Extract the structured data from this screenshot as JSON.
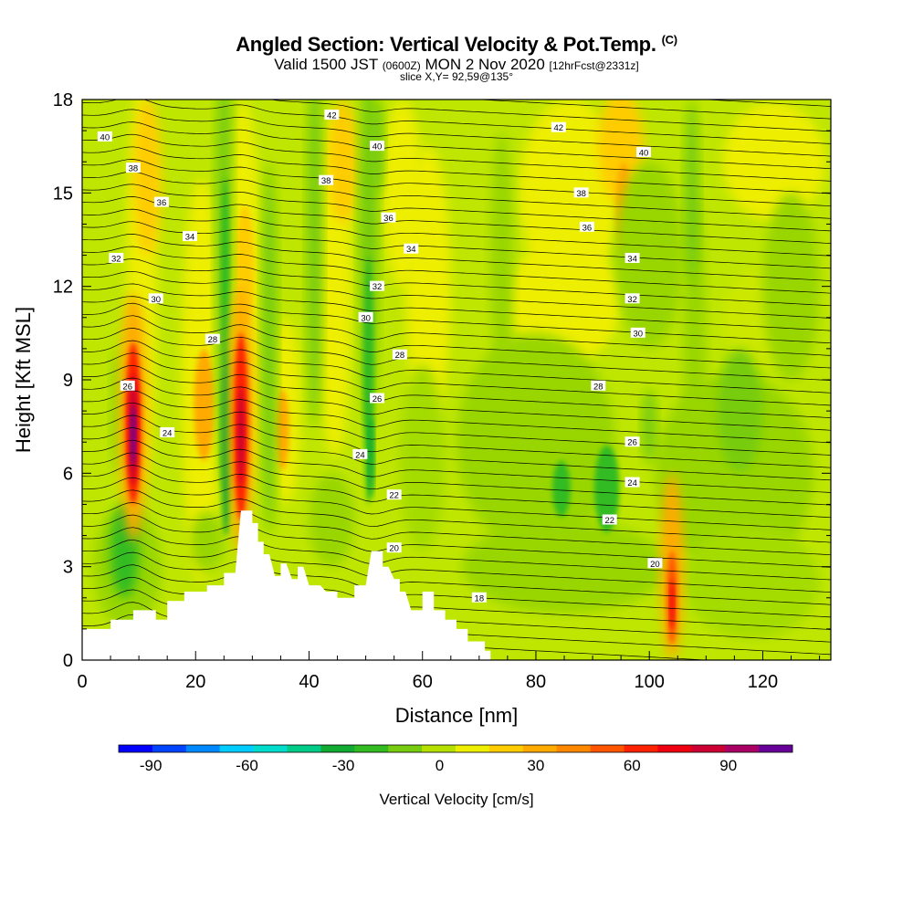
{
  "header": {
    "title": "Angled Section: Vertical Velocity & Pot.Temp.",
    "title_mark": "(C)",
    "subtitle_part1": "Valid 1500 JST",
    "subtitle_small1": "(0600Z)",
    "subtitle_part2": "MON 2 Nov 2020",
    "subtitle_small2": "[12hrFcst@2331z]",
    "slice": "slice X,Y= 92,59@135°"
  },
  "chart_data": {
    "type": "heatmap",
    "xlabel": "Distance [nm]",
    "ylabel": "Height [Kft MSL]",
    "xlim": [
      0,
      132
    ],
    "ylim": [
      0,
      18
    ],
    "x_ticks": [
      0,
      20,
      40,
      60,
      80,
      100,
      120
    ],
    "y_ticks": [
      0,
      3,
      6,
      9,
      12,
      15,
      18
    ],
    "colorbar": {
      "label": "Vertical Velocity [cm/s]",
      "range": [
        -100,
        110
      ],
      "tick_values": [
        -90,
        -60,
        -30,
        0,
        30,
        60,
        90
      ],
      "colors": [
        "#0000ff",
        "#0044ff",
        "#0088ff",
        "#00ccff",
        "#00ddcc",
        "#00cc88",
        "#11aa33",
        "#33bb22",
        "#77cc11",
        "#b5e000",
        "#eeee00",
        "#ffcc00",
        "#ffaa00",
        "#ff8800",
        "#ff5500",
        "#ff2200",
        "#ee0011",
        "#cc0033",
        "#aa0066",
        "#660099"
      ]
    },
    "theta_contours": [
      {
        "value": 18,
        "label_x": 70,
        "label_y": 2.0
      },
      {
        "value": 20,
        "label_x": 55,
        "label_y": 3.6,
        "label_x2": 101,
        "label_y2": 3.1
      },
      {
        "value": 22,
        "label_x": 55,
        "label_y": 5.3,
        "label_x2": 93,
        "label_y2": 4.5
      },
      {
        "value": 24,
        "label_x": 15,
        "label_y": 7.3,
        "label_x2": 49,
        "label_y2": 6.6,
        "label_x3": 97,
        "label_y3": 5.7
      },
      {
        "value": 26,
        "label_x": 8,
        "label_y": 8.8,
        "label_x2": 52,
        "label_y2": 8.4,
        "label_x3": 97,
        "label_y3": 7.0
      },
      {
        "value": 28,
        "label_x": 23,
        "label_y": 10.3,
        "label_x2": 56,
        "label_y2": 9.8,
        "label_x3": 91,
        "label_y3": 8.8
      },
      {
        "value": 30,
        "label_x": 13,
        "label_y": 11.6,
        "label_x2": 50,
        "label_y2": 11.0,
        "label_x3": 98,
        "label_y3": 10.5
      },
      {
        "value": 32,
        "label_x": 6,
        "label_y": 12.9,
        "label_x2": 52,
        "label_y2": 12.0,
        "label_x3": 97,
        "label_y3": 11.6
      },
      {
        "value": 34,
        "label_x": 19,
        "label_y": 13.6,
        "label_x2": 58,
        "label_y2": 13.2,
        "label_x3": 97,
        "label_y3": 12.9
      },
      {
        "value": 36,
        "label_x": 14,
        "label_y": 14.7,
        "label_x2": 54,
        "label_y2": 14.2,
        "label_x3": 89,
        "label_y3": 13.9
      },
      {
        "value": 38,
        "label_x": 9,
        "label_y": 15.8,
        "label_x2": 43,
        "label_y2": 15.4,
        "label_x3": 88,
        "label_y3": 15.0
      },
      {
        "value": 40,
        "label_x": 4,
        "label_y": 16.8,
        "label_x2": 52,
        "label_y2": 16.5,
        "label_x3": 99,
        "label_y3": 16.3
      },
      {
        "value": 42,
        "label_x": 44,
        "label_y": 17.5,
        "label_x2": 84,
        "label_y2": 17.1
      }
    ],
    "terrain": [
      [
        0,
        1.0
      ],
      [
        5,
        1.0
      ],
      [
        5,
        1.3
      ],
      [
        9,
        1.3
      ],
      [
        9,
        1.6
      ],
      [
        13,
        1.6
      ],
      [
        13,
        1.3
      ],
      [
        15,
        1.3
      ],
      [
        15,
        1.9
      ],
      [
        18,
        1.9
      ],
      [
        18,
        2.2
      ],
      [
        22,
        2.2
      ],
      [
        22,
        2.4
      ],
      [
        25,
        2.4
      ],
      [
        25,
        2.8
      ],
      [
        27,
        2.8
      ],
      [
        28,
        4.8
      ],
      [
        30,
        4.8
      ],
      [
        30,
        4.4
      ],
      [
        31,
        4.4
      ],
      [
        31,
        3.8
      ],
      [
        32,
        3.8
      ],
      [
        32,
        3.4
      ],
      [
        33,
        3.4
      ],
      [
        34,
        2.7
      ],
      [
        35,
        2.7
      ],
      [
        35,
        3.1
      ],
      [
        36,
        3.1
      ],
      [
        37,
        2.6
      ],
      [
        38,
        2.6
      ],
      [
        38,
        3.0
      ],
      [
        39,
        3.0
      ],
      [
        40,
        2.4
      ],
      [
        42,
        2.4
      ],
      [
        43,
        2.2
      ],
      [
        45,
        2.2
      ],
      [
        45,
        2.0
      ],
      [
        48,
        2.0
      ],
      [
        48,
        2.4
      ],
      [
        50,
        2.4
      ],
      [
        51,
        3.5
      ],
      [
        53,
        3.5
      ],
      [
        53,
        3.0
      ],
      [
        54,
        3.0
      ],
      [
        55,
        2.6
      ],
      [
        56,
        2.6
      ],
      [
        56,
        2.2
      ],
      [
        57,
        2.2
      ],
      [
        58,
        1.6
      ],
      [
        60,
        1.6
      ],
      [
        60,
        2.2
      ],
      [
        62,
        2.2
      ],
      [
        62,
        1.6
      ],
      [
        64,
        1.6
      ],
      [
        64,
        1.3
      ],
      [
        66,
        1.3
      ],
      [
        66,
        1.0
      ],
      [
        68,
        1.0
      ],
      [
        68,
        0.6
      ],
      [
        71,
        0.6
      ],
      [
        71,
        0.3
      ],
      [
        72,
        0.3
      ],
      [
        72,
        0
      ],
      [
        0,
        0
      ]
    ]
  }
}
